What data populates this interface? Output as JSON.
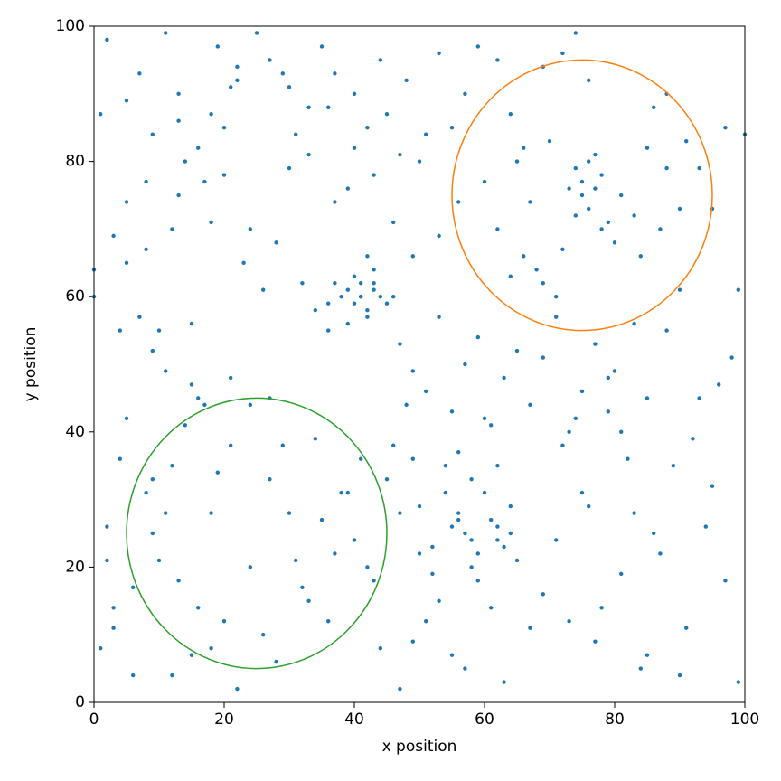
{
  "chart_data": {
    "type": "scatter",
    "xlabel": "x position",
    "ylabel": "y position",
    "xlim": [
      0,
      100
    ],
    "ylim": [
      0,
      100
    ],
    "xticks": [
      0,
      20,
      40,
      60,
      80,
      100
    ],
    "yticks": [
      0,
      20,
      40,
      60,
      80,
      100
    ],
    "color": "#1f77b4",
    "x": [
      1,
      2,
      4,
      5,
      8,
      9,
      11,
      13,
      14,
      16,
      19,
      21,
      22,
      24,
      27,
      29,
      30,
      33,
      35,
      36,
      0,
      0,
      3,
      5,
      7,
      8,
      10,
      12,
      13,
      15,
      17,
      18,
      20,
      23,
      26,
      28,
      31,
      32,
      34,
      37,
      39,
      40,
      42,
      44,
      45,
      46,
      47,
      49,
      51,
      53,
      38,
      39,
      40,
      40,
      41,
      41,
      42,
      43,
      43,
      44,
      36,
      37,
      39,
      41,
      42,
      42,
      43,
      45,
      46,
      36,
      55,
      57,
      59,
      62,
      64,
      66,
      69,
      72,
      74,
      76,
      60,
      62,
      65,
      67,
      70,
      72,
      74,
      75,
      76,
      77,
      78,
      79,
      80,
      81,
      83,
      85,
      87,
      88,
      90,
      73,
      74,
      75,
      76,
      77,
      78,
      71,
      69,
      68,
      66,
      64,
      84,
      86,
      88,
      90,
      91,
      93,
      95,
      97,
      99,
      100,
      2,
      4,
      5,
      9,
      11,
      14,
      15,
      17,
      19,
      21,
      3,
      6,
      8,
      10,
      12,
      13,
      16,
      18,
      20,
      22,
      24,
      27,
      29,
      31,
      33,
      35,
      37,
      39,
      41,
      43,
      26,
      28,
      30,
      32,
      34,
      36,
      38,
      40,
      42,
      44,
      46,
      48,
      50,
      52,
      54,
      56,
      58,
      60,
      62,
      64,
      55,
      56,
      57,
      58,
      59,
      61,
      62,
      63,
      64,
      65,
      47,
      49,
      51,
      53,
      55,
      57,
      59,
      61,
      63,
      67,
      69,
      71,
      73,
      75,
      77,
      79,
      81,
      83,
      85,
      87,
      89,
      91,
      93,
      95,
      97,
      99,
      72,
      74,
      76,
      78,
      80,
      82,
      84,
      86,
      88,
      90,
      92,
      94,
      96,
      98,
      47,
      49,
      51,
      53,
      55,
      57,
      59,
      61,
      63,
      65,
      67,
      69,
      71,
      73,
      75,
      77,
      79,
      81,
      83,
      85,
      2,
      5,
      7,
      9,
      11,
      13,
      16,
      18,
      20,
      22,
      25,
      30,
      33,
      37,
      40,
      43,
      48,
      50,
      53,
      56,
      45,
      47,
      49,
      50,
      52,
      54,
      56,
      58,
      60,
      62,
      1,
      3,
      6,
      9,
      12,
      15,
      18,
      21,
      24,
      27
    ],
    "values": [
      87,
      26,
      55,
      74,
      77,
      52,
      49,
      86,
      80,
      45,
      97,
      91,
      94,
      70,
      95,
      93,
      79,
      81,
      97,
      88,
      64,
      60,
      69,
      65,
      57,
      67,
      55,
      70,
      75,
      56,
      77,
      71,
      85,
      65,
      61,
      68,
      84,
      62,
      58,
      74,
      76,
      82,
      85,
      95,
      87,
      71,
      81,
      66,
      84,
      69,
      60,
      61,
      63,
      59,
      62,
      60,
      58,
      61,
      64,
      60,
      59,
      62,
      56,
      60,
      66,
      57,
      62,
      59,
      60,
      55,
      85,
      90,
      97,
      95,
      87,
      82,
      94,
      96,
      99,
      92,
      77,
      70,
      80,
      74,
      83,
      67,
      79,
      75,
      73,
      81,
      78,
      71,
      68,
      75,
      72,
      82,
      70,
      79,
      73,
      76,
      72,
      77,
      80,
      76,
      70,
      60,
      62,
      64,
      66,
      63,
      66,
      88,
      90,
      61,
      83,
      79,
      73,
      85,
      61,
      84,
      21,
      36,
      42,
      33,
      28,
      41,
      47,
      44,
      34,
      48,
      11,
      4,
      31,
      21,
      4,
      18,
      14,
      8,
      12,
      2,
      44,
      33,
      38,
      21,
      15,
      27,
      22,
      31,
      36,
      18,
      10,
      6,
      28,
      17,
      39,
      12,
      31,
      24,
      20,
      8,
      38,
      44,
      29,
      23,
      35,
      27,
      20,
      31,
      24,
      25,
      26,
      28,
      25,
      24,
      22,
      27,
      26,
      23,
      29,
      21,
      2,
      9,
      12,
      15,
      7,
      5,
      18,
      14,
      3,
      11,
      16,
      24,
      12,
      31,
      9,
      43,
      19,
      28,
      7,
      22,
      35,
      11,
      45,
      32,
      18,
      3,
      38,
      42,
      29,
      14,
      49,
      36,
      5,
      25,
      55,
      4,
      39,
      26,
      47,
      51,
      53,
      49,
      46,
      57,
      43,
      50,
      54,
      41,
      48,
      52,
      44,
      51,
      57,
      40,
      46,
      53,
      48,
      40,
      56,
      45,
      98,
      89,
      93,
      84,
      99,
      90,
      82,
      87,
      78,
      92,
      99,
      91,
      88,
      93,
      90,
      78,
      92,
      80,
      96,
      74,
      33,
      28,
      36,
      22,
      19,
      31,
      37,
      33,
      42,
      35,
      8,
      14,
      17,
      25,
      35,
      7,
      28,
      38,
      20,
      45
    ],
    "circles": [
      {
        "center": [
          75,
          75
        ],
        "radius": 20,
        "color": "#ff7f0e"
      },
      {
        "center": [
          25,
          25
        ],
        "radius": 20,
        "color": "#2ca02c"
      }
    ]
  }
}
